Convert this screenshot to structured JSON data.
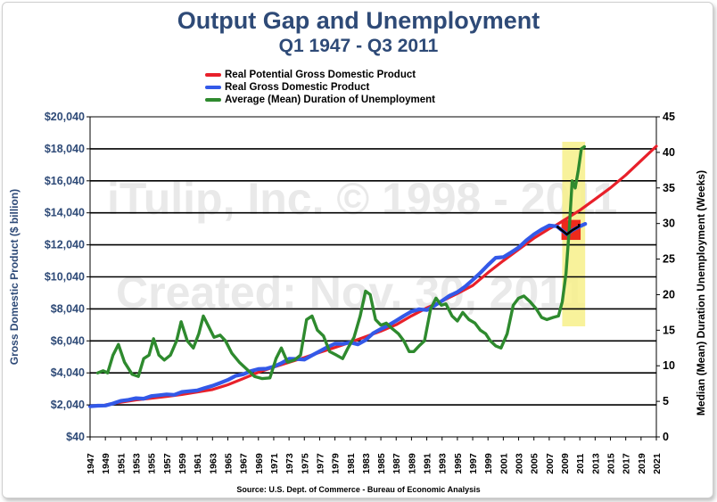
{
  "chart_data": {
    "type": "line",
    "title": "Output Gap and Unemployment",
    "subtitle": "Q1 1947 - Q3 2011",
    "source": "Source: U.S. Dept. of Commerce - Bureau of Economic Analysis",
    "watermarks": [
      "iTulip, Inc. © 1998 - 2011",
      "Created: Nov. 30, 2011"
    ],
    "ylabel_left": "Gross Domestic Product ($ billion)",
    "ylabel_right": "Median (Mean) Duration Unemployment  (Weeks)",
    "ylim_left": [
      40,
      20040
    ],
    "ylim_right": [
      0,
      45
    ],
    "xlim": [
      1947,
      2021
    ],
    "y_ticks_left": [
      "$20,040",
      "$18,040",
      "$16,040",
      "$14,040",
      "$12,040",
      "$10,040",
      "$8,040",
      "$6,040",
      "$4,040",
      "$2,040",
      "$40"
    ],
    "y_tick_values_left": [
      20040,
      18040,
      16040,
      14040,
      12040,
      10040,
      8040,
      6040,
      4040,
      2040,
      40
    ],
    "y_ticks_right": [
      "45",
      "40",
      "35",
      "30",
      "25",
      "20",
      "15",
      "10",
      "5",
      "0"
    ],
    "y_tick_values_right": [
      45,
      40,
      35,
      30,
      25,
      20,
      15,
      10,
      5,
      0
    ],
    "x_ticks": [
      "1947",
      "1949",
      "1951",
      "1953",
      "1955",
      "1957",
      "1959",
      "1961",
      "1963",
      "1965",
      "1967",
      "1969",
      "1971",
      "1973",
      "1975",
      "1977",
      "1979",
      "1981",
      "1983",
      "1985",
      "1987",
      "1989",
      "1991",
      "1993",
      "1995",
      "1997",
      "1999",
      "2001",
      "2003",
      "2005",
      "2007",
      "2009",
      "2011",
      "2013",
      "2015",
      "2017",
      "2019",
      "2021"
    ],
    "grid_y": [
      2040,
      4040,
      6040,
      8040,
      10040,
      12040,
      14040,
      16040,
      18040
    ],
    "highlight_region": {
      "x": [
        2008.7,
        2011.7
      ],
      "color": "#f7f08a"
    },
    "gap_box": {
      "x": [
        2008.6,
        2011.1
      ],
      "y": [
        12350,
        13600
      ],
      "color": "#ee2a1b"
    },
    "series": [
      {
        "name": "Real Potential Gross Domestic Product",
        "color": "#e8202a",
        "axis": "left",
        "x": [
          1949,
          1951,
          1953,
          1955,
          1957,
          1959,
          1961,
          1963,
          1965,
          1967,
          1969,
          1971,
          1973,
          1975,
          1977,
          1979,
          1981,
          1983,
          1985,
          1987,
          1989,
          1991,
          1993,
          1995,
          1997,
          1999,
          2001,
          2003,
          2005,
          2007,
          2008,
          2009,
          2010,
          2011,
          2013,
          2015,
          2017,
          2019,
          2021
        ],
        "values": [
          2040,
          2200,
          2350,
          2450,
          2570,
          2690,
          2840,
          3000,
          3300,
          3680,
          4080,
          4400,
          4700,
          5000,
          5320,
          5630,
          5950,
          6300,
          6650,
          7050,
          7600,
          8100,
          8530,
          9000,
          9500,
          10300,
          11050,
          11750,
          12450,
          13050,
          13300,
          13600,
          13900,
          14200,
          14900,
          15600,
          16400,
          17300,
          18200
        ]
      },
      {
        "name": "Real Gross Domestic Product",
        "color": "#3359e8",
        "axis": "left",
        "x": [
          1947,
          1948,
          1949,
          1950,
          1951,
          1952,
          1953,
          1954,
          1955,
          1956,
          1957,
          1958,
          1959,
          1960,
          1961,
          1962,
          1963,
          1964,
          1965,
          1966,
          1967,
          1968,
          1969,
          1970,
          1971,
          1972,
          1973,
          1974,
          1975,
          1976,
          1977,
          1978,
          1979,
          1980,
          1981,
          1982,
          1983,
          1984,
          1985,
          1986,
          1987,
          1988,
          1989,
          1990,
          1991,
          1992,
          1993,
          1994,
          1995,
          1996,
          1997,
          1998,
          1999,
          2000,
          2001,
          2002,
          2003,
          2004,
          2005,
          2006,
          2007,
          2008,
          2008.8,
          2009.3,
          2010,
          2011,
          2011.7
        ],
        "values": [
          1950,
          1990,
          2000,
          2130,
          2290,
          2360,
          2460,
          2430,
          2590,
          2640,
          2700,
          2670,
          2850,
          2900,
          2940,
          3100,
          3230,
          3410,
          3600,
          3850,
          3950,
          4150,
          4280,
          4300,
          4430,
          4650,
          4920,
          4910,
          4870,
          5140,
          5390,
          5650,
          5860,
          5850,
          5940,
          5820,
          6090,
          6520,
          6780,
          7020,
          7300,
          7600,
          7880,
          8020,
          7970,
          8240,
          8540,
          8870,
          9090,
          9430,
          9850,
          10290,
          10780,
          11230,
          11270,
          11560,
          11870,
          12320,
          12690,
          13000,
          13250,
          13200,
          12900,
          12700,
          12950,
          13200,
          13350
        ]
      },
      {
        "name": "Average (Mean) Duration of Unemployment",
        "color": "#2e8a2e",
        "axis": "right",
        "x": [
          1948,
          1948.7,
          1949.3,
          1950,
          1950.7,
          1951.5,
          1952.5,
          1953.3,
          1954,
          1954.7,
          1955.3,
          1956,
          1956.7,
          1957.5,
          1958.3,
          1958.9,
          1959.7,
          1960.5,
          1961.2,
          1961.8,
          1962.5,
          1963.2,
          1964,
          1964.7,
          1965.5,
          1966.5,
          1967.5,
          1968.5,
          1969.5,
          1970.5,
          1971.3,
          1972,
          1972.8,
          1973.7,
          1974.5,
          1975.3,
          1976,
          1976.7,
          1977.5,
          1978.3,
          1979.2,
          1980,
          1980.7,
          1981.5,
          1982.3,
          1983,
          1983.6,
          1984.3,
          1985,
          1985.7,
          1986.5,
          1987.3,
          1988,
          1988.7,
          1989.3,
          1990,
          1990.7,
          1991.5,
          1992.2,
          1992.9,
          1993.5,
          1994.3,
          1995,
          1995.7,
          1996.5,
          1997.3,
          1998,
          1998.7,
          1999.3,
          2000,
          2000.7,
          2001.5,
          2002.3,
          2003,
          2003.7,
          2004.5,
          2005.3,
          2006,
          2006.7,
          2007.5,
          2008.2,
          2008.7,
          2009.2,
          2009.6,
          2010,
          2010.4,
          2010.8,
          2011.2,
          2011.6
        ],
        "values": [
          9,
          9.3,
          9,
          11.5,
          13,
          10.5,
          8.8,
          8.5,
          11,
          11.5,
          13.8,
          11.5,
          10.8,
          11.5,
          13.5,
          16.2,
          13.5,
          12.5,
          14.5,
          17,
          15.5,
          14,
          14.3,
          13.5,
          11.8,
          10.5,
          9.5,
          8.5,
          8.2,
          8.3,
          11,
          12.5,
          10.5,
          10.8,
          11.5,
          16.5,
          17,
          15,
          14.2,
          12,
          11.5,
          11,
          12.5,
          14,
          17,
          20.5,
          20,
          16.5,
          15.7,
          16,
          15.2,
          14.5,
          13.5,
          12,
          12,
          12.8,
          13.5,
          18,
          19.5,
          18.5,
          18.7,
          17,
          16.3,
          17.5,
          16.5,
          16,
          15,
          14.5,
          13.5,
          12.8,
          12.5,
          14.5,
          18.5,
          19.5,
          19.8,
          19,
          18,
          16.8,
          16.5,
          16.8,
          17,
          19,
          23,
          29,
          36,
          35,
          37.5,
          40.5,
          40.8
        ]
      }
    ]
  }
}
